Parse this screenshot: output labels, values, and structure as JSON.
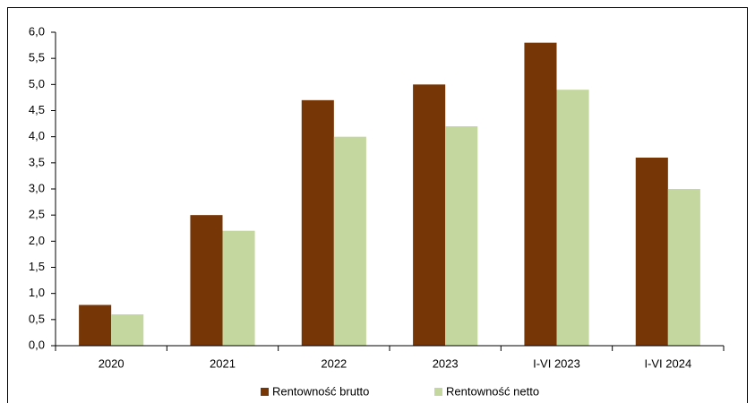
{
  "chart_data": {
    "type": "bar",
    "categories": [
      "2020",
      "2021",
      "2022",
      "2023",
      "I-VI 2023",
      "I-VI 2024"
    ],
    "series": [
      {
        "name": "Rentowność brutto",
        "color": "#763606",
        "values": [
          0.78,
          2.5,
          4.7,
          5.0,
          5.8,
          3.6
        ]
      },
      {
        "name": "Rentowność netto",
        "color": "#c4d79f",
        "values": [
          0.6,
          2.2,
          4.0,
          4.2,
          4.9,
          3.0
        ]
      }
    ],
    "ylim": [
      0,
      6
    ],
    "yticks": [
      {
        "value": 0,
        "label": "0,0"
      },
      {
        "value": 0.5,
        "label": "0,5"
      },
      {
        "value": 1,
        "label": "1,0"
      },
      {
        "value": 1.5,
        "label": "1,5"
      },
      {
        "value": 2,
        "label": "2,0"
      },
      {
        "value": 2.5,
        "label": "2,5"
      },
      {
        "value": 3,
        "label": "3,0"
      },
      {
        "value": 3.5,
        "label": "3,5"
      },
      {
        "value": 4,
        "label": "4,0"
      },
      {
        "value": 4.5,
        "label": "4,5"
      },
      {
        "value": 5,
        "label": "5,0"
      },
      {
        "value": 5.5,
        "label": "5,5"
      },
      {
        "value": 6,
        "label": "6,0"
      }
    ],
    "grid": false,
    "legend": "bottom"
  }
}
